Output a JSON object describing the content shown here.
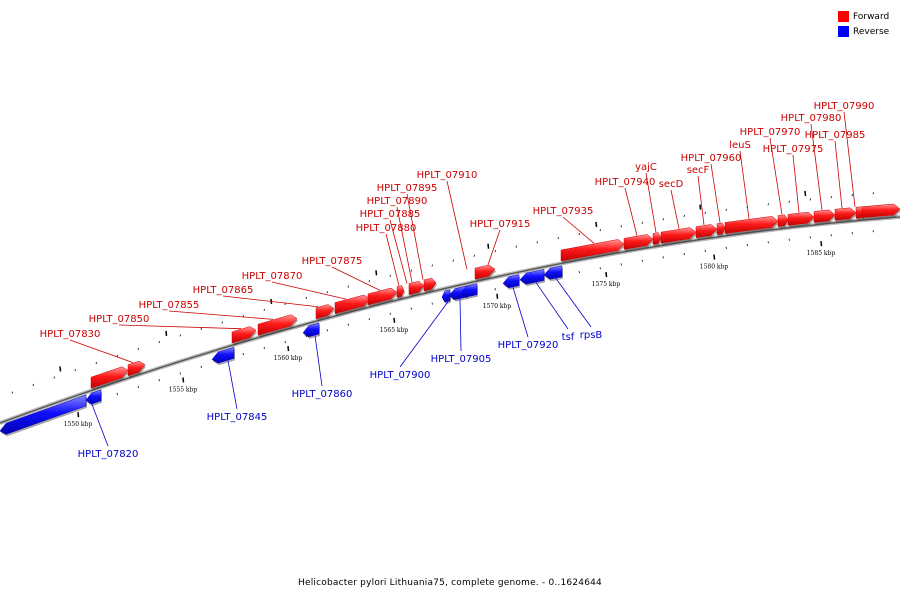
{
  "legend": {
    "forward_label": "Forward",
    "reverse_label": "Reverse",
    "forward_color": "#ff0000",
    "reverse_color": "#0000ff"
  },
  "footer": "Helicobacter pylori Lithuania75, complete genome. - 0..1624644",
  "axis_ticks": [
    "1550 kbp",
    "1555 kbp",
    "1560 kbp",
    "1565 kbp",
    "1570 kbp",
    "1575 kbp",
    "1580 kbp",
    "1585 kbp"
  ],
  "genes": [
    {
      "label": "HPLT_07820",
      "strand": "reverse"
    },
    {
      "label": "HPLT_07830",
      "strand": "forward"
    },
    {
      "label": "HPLT_07845",
      "strand": "reverse"
    },
    {
      "label": "HPLT_07850",
      "strand": "forward"
    },
    {
      "label": "HPLT_07855",
      "strand": "forward"
    },
    {
      "label": "HPLT_07860",
      "strand": "reverse"
    },
    {
      "label": "HPLT_07865",
      "strand": "forward"
    },
    {
      "label": "HPLT_07870",
      "strand": "forward"
    },
    {
      "label": "HPLT_07875",
      "strand": "forward"
    },
    {
      "label": "HPLT_07880",
      "strand": "forward"
    },
    {
      "label": "HPLT_07885",
      "strand": "forward"
    },
    {
      "label": "HPLT_07890",
      "strand": "forward"
    },
    {
      "label": "HPLT_07895",
      "strand": "forward"
    },
    {
      "label": "HPLT_07900",
      "strand": "reverse"
    },
    {
      "label": "HPLT_07905",
      "strand": "reverse"
    },
    {
      "label": "HPLT_07910",
      "strand": "forward"
    },
    {
      "label": "HPLT_07915",
      "strand": "forward"
    },
    {
      "label": "HPLT_07920",
      "strand": "reverse"
    },
    {
      "label": "tsf",
      "strand": "reverse"
    },
    {
      "label": "rpsB",
      "strand": "reverse"
    },
    {
      "label": "HPLT_07935",
      "strand": "forward"
    },
    {
      "label": "HPLT_07940",
      "strand": "forward"
    },
    {
      "label": "yajC",
      "strand": "forward"
    },
    {
      "label": "secD",
      "strand": "forward"
    },
    {
      "label": "secF",
      "strand": "forward"
    },
    {
      "label": "HPLT_07960",
      "strand": "forward"
    },
    {
      "label": "leuS",
      "strand": "forward"
    },
    {
      "label": "HPLT_07970",
      "strand": "forward"
    },
    {
      "label": "HPLT_07975",
      "strand": "forward"
    },
    {
      "label": "HPLT_07980",
      "strand": "forward"
    },
    {
      "label": "HPLT_07985",
      "strand": "forward"
    },
    {
      "label": "HPLT_07990",
      "strand": "forward"
    }
  ]
}
